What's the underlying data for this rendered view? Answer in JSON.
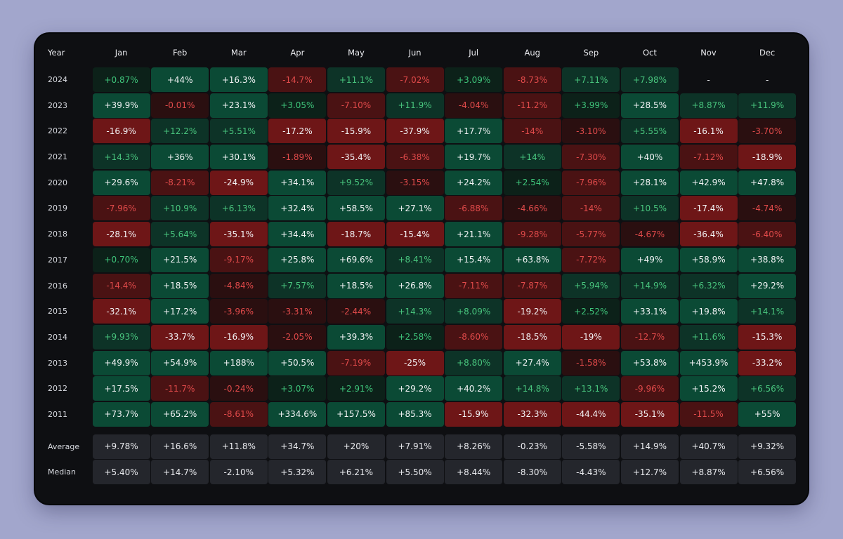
{
  "header": {
    "year_label": "Year",
    "months": [
      "Jan",
      "Feb",
      "Mar",
      "Apr",
      "May",
      "Jun",
      "Jul",
      "Aug",
      "Sep",
      "Oct",
      "Nov",
      "Dec"
    ]
  },
  "colors": {
    "background": "#a2a6cc",
    "card": "#0e0f12",
    "positive_text_light": "#3ec47a",
    "negative_text_light": "#e04a4a",
    "strong_text": "#f2f3f5",
    "stat_cell": "#24262c"
  },
  "rows": [
    {
      "year": "2024",
      "values": [
        "+0.87%",
        "+44%",
        "+16.3%",
        "-14.7%",
        "+11.1%",
        "-7.02%",
        "+3.09%",
        "-8.73%",
        "+7.11%",
        "+7.98%",
        "-",
        "-"
      ]
    },
    {
      "year": "2023",
      "values": [
        "+39.9%",
        "-0.01%",
        "+23.1%",
        "+3.05%",
        "-7.10%",
        "+11.9%",
        "-4.04%",
        "-11.2%",
        "+3.99%",
        "+28.5%",
        "+8.87%",
        "+11.9%"
      ]
    },
    {
      "year": "2022",
      "values": [
        "-16.9%",
        "+12.2%",
        "+5.51%",
        "-17.2%",
        "-15.9%",
        "-37.9%",
        "+17.7%",
        "-14%",
        "-3.10%",
        "+5.55%",
        "-16.1%",
        "-3.70%"
      ]
    },
    {
      "year": "2021",
      "values": [
        "+14.3%",
        "+36%",
        "+30.1%",
        "-1.89%",
        "-35.4%",
        "-6.38%",
        "+19.7%",
        "+14%",
        "-7.30%",
        "+40%",
        "-7.12%",
        "-18.9%"
      ]
    },
    {
      "year": "2020",
      "values": [
        "+29.6%",
        "-8.21%",
        "-24.9%",
        "+34.1%",
        "+9.52%",
        "-3.15%",
        "+24.2%",
        "+2.54%",
        "-7.96%",
        "+28.1%",
        "+42.9%",
        "+47.8%"
      ]
    },
    {
      "year": "2019",
      "values": [
        "-7.96%",
        "+10.9%",
        "+6.13%",
        "+32.4%",
        "+58.5%",
        "+27.1%",
        "-6.88%",
        "-4.66%",
        "-14%",
        "+10.5%",
        "-17.4%",
        "-4.74%"
      ]
    },
    {
      "year": "2018",
      "values": [
        "-28.1%",
        "+5.64%",
        "-35.1%",
        "+34.4%",
        "-18.7%",
        "-15.4%",
        "+21.1%",
        "-9.28%",
        "-5.77%",
        "-4.67%",
        "-36.4%",
        "-6.40%"
      ]
    },
    {
      "year": "2017",
      "values": [
        "+0.70%",
        "+21.5%",
        "-9.17%",
        "+25.8%",
        "+69.6%",
        "+8.41%",
        "+15.4%",
        "+63.8%",
        "-7.72%",
        "+49%",
        "+58.9%",
        "+38.8%"
      ]
    },
    {
      "year": "2016",
      "values": [
        "-14.4%",
        "+18.5%",
        "-4.84%",
        "+7.57%",
        "+18.5%",
        "+26.8%",
        "-7.11%",
        "-7.87%",
        "+5.94%",
        "+14.9%",
        "+6.32%",
        "+29.2%"
      ]
    },
    {
      "year": "2015",
      "values": [
        "-32.1%",
        "+17.2%",
        "-3.96%",
        "-3.31%",
        "-2.44%",
        "+14.3%",
        "+8.09%",
        "-19.2%",
        "+2.52%",
        "+33.1%",
        "+19.8%",
        "+14.1%"
      ]
    },
    {
      "year": "2014",
      "values": [
        "+9.93%",
        "-33.7%",
        "-16.9%",
        "-2.05%",
        "+39.3%",
        "+2.58%",
        "-8.60%",
        "-18.5%",
        "-19%",
        "-12.7%",
        "+11.6%",
        "-15.3%"
      ]
    },
    {
      "year": "2013",
      "values": [
        "+49.9%",
        "+54.9%",
        "+188%",
        "+50.5%",
        "-7.19%",
        "-25%",
        "+8.80%",
        "+27.4%",
        "-1.58%",
        "+53.8%",
        "+453.9%",
        "-33.2%"
      ]
    },
    {
      "year": "2012",
      "values": [
        "+17.5%",
        "-11.7%",
        "-0.24%",
        "+3.07%",
        "+2.91%",
        "+29.2%",
        "+40.2%",
        "+14.8%",
        "+13.1%",
        "-9.96%",
        "+15.2%",
        "+6.56%"
      ]
    },
    {
      "year": "2011",
      "values": [
        "+73.7%",
        "+65.2%",
        "-8.61%",
        "+334.6%",
        "+157.5%",
        "+85.3%",
        "-15.9%",
        "-32.3%",
        "-44.4%",
        "-35.1%",
        "-11.5%",
        "+55%"
      ]
    }
  ],
  "stats": [
    {
      "label": "Average",
      "values": [
        "+9.78%",
        "+16.6%",
        "+11.8%",
        "+34.7%",
        "+20%",
        "+7.91%",
        "+8.26%",
        "-0.23%",
        "-5.58%",
        "+14.9%",
        "+40.7%",
        "+9.32%"
      ]
    },
    {
      "label": "Median",
      "values": [
        "+5.40%",
        "+14.7%",
        "-2.10%",
        "+5.32%",
        "+6.21%",
        "+5.50%",
        "+8.44%",
        "-8.30%",
        "-4.43%",
        "+12.7%",
        "+8.87%",
        "+6.56%"
      ]
    }
  ]
}
